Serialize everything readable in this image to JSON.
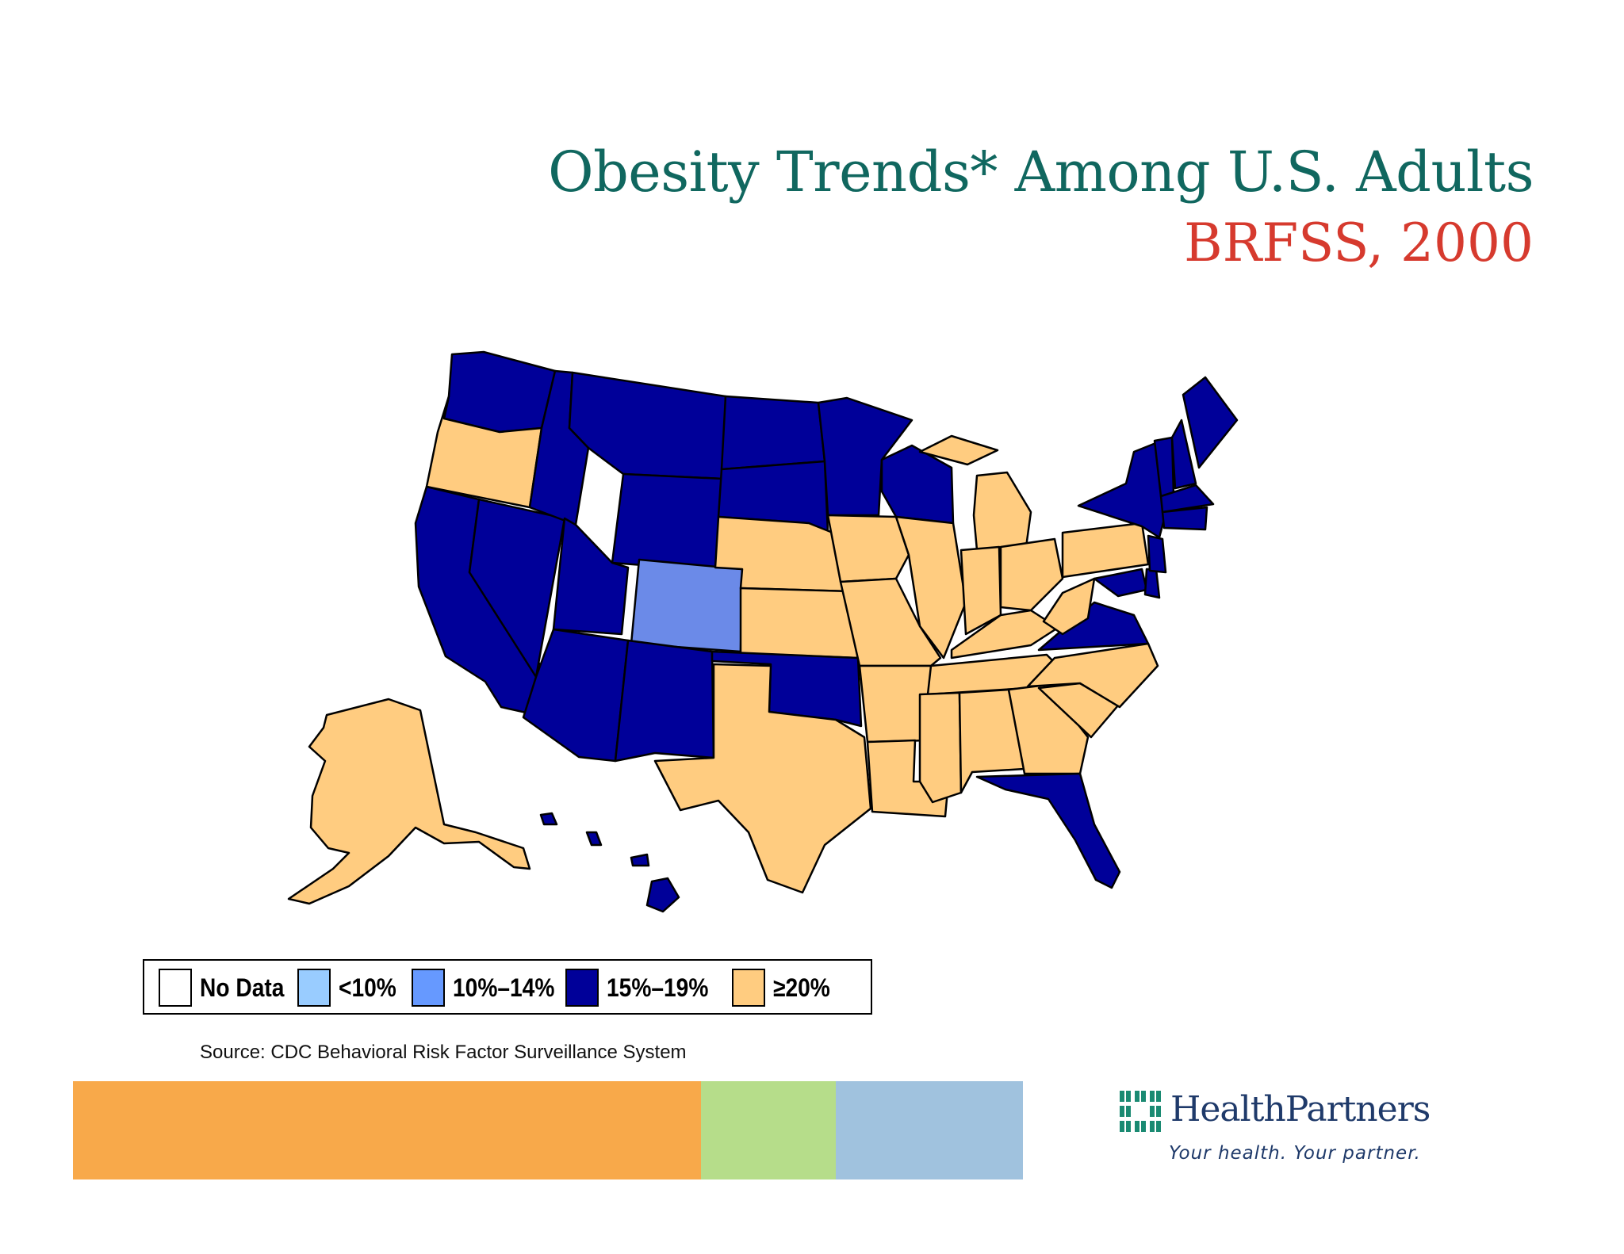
{
  "title": "Obesity Trends* Among U.S. Adults",
  "subtitle": "BRFSS, 2000",
  "colors": {
    "title": "#10675f",
    "subtitle": "#d63a2e",
    "no_data": "#ffffff",
    "lt10": "#99ccff",
    "10_14": "#6699ff",
    "15_19": "#000099",
    "ge20": "#ffcc80"
  },
  "legend": [
    {
      "label": "No Data",
      "color": "#ffffff"
    },
    {
      "label": "<10%",
      "color": "#99ccff"
    },
    {
      "label": "10%–14%",
      "color": "#6699ff"
    },
    {
      "label": "15%–19%",
      "color": "#000099"
    },
    {
      "label": "≥20%",
      "color": "#ffcc80"
    }
  ],
  "source": "Source: CDC Behavioral Risk Factor Surveillance  System",
  "footer_bars": [
    {
      "name": "orange-bar",
      "color": "#f8a94a"
    },
    {
      "name": "green-bar",
      "color": "#b6dd8a"
    },
    {
      "name": "blue-bar",
      "color": "#a0c2de"
    }
  ],
  "logo": {
    "name": "HealthPartners",
    "tagline": "Your health. Your partner."
  }
}
